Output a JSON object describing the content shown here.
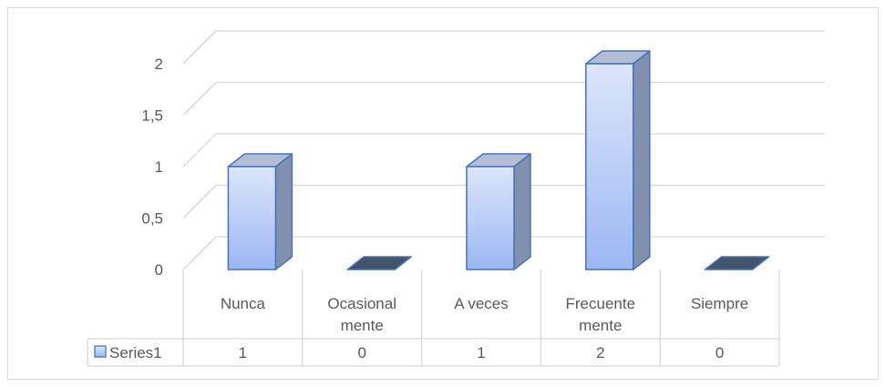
{
  "chart_data": {
    "type": "bar",
    "style": "3d-column-with-data-table",
    "categories": [
      "Nunca",
      "Ocasionalmente",
      "A veces",
      "Frecuentemente",
      "Siempre"
    ],
    "category_display": [
      [
        "Nunca"
      ],
      [
        "Ocasional",
        "mente"
      ],
      [
        "A veces"
      ],
      [
        "Frecuente",
        "mente"
      ],
      [
        "Siempre"
      ]
    ],
    "series": [
      {
        "name": "Series1",
        "values": [
          1,
          0,
          1,
          2,
          0
        ]
      }
    ],
    "ylim": [
      0,
      2
    ],
    "yticks": [
      "0",
      "0,5",
      "1",
      "1,5",
      "2"
    ],
    "ytick_values": [
      0,
      0.5,
      1,
      1.5,
      2
    ],
    "grid": true,
    "legend": "data-table-left",
    "colors": {
      "bar_front_top": "#dce6fb",
      "bar_front_bottom": "#9bb7f2",
      "bar_side": "#8090ad",
      "bar_top": "#b3bdd3",
      "bar_stroke": "#4472c4",
      "flat_bar": "#44546a",
      "grid": "#d9d9d9",
      "text": "#595959"
    }
  }
}
